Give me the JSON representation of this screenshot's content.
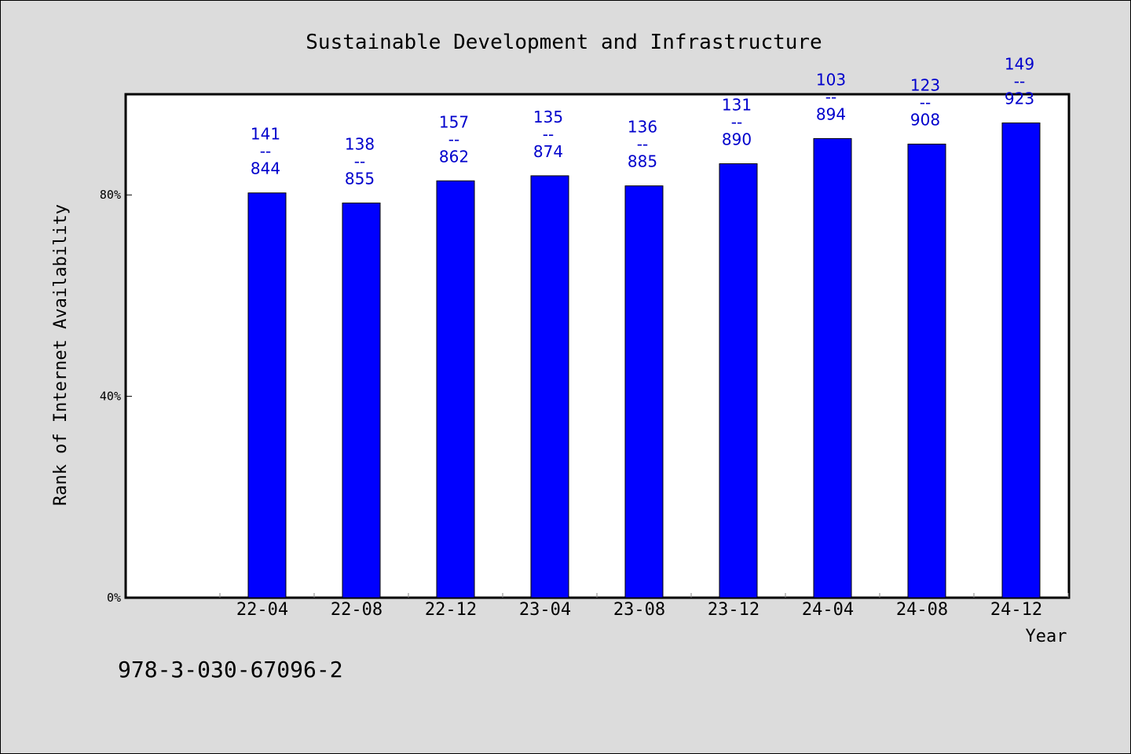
{
  "chart_data": {
    "type": "bar",
    "title": "Sustainable Development and Infrastructure",
    "xlabel": "Year",
    "ylabel": "Rank of Internet Availability",
    "categories": [
      "22-04",
      "22-08",
      "22-12",
      "23-04",
      "23-08",
      "23-12",
      "24-04",
      "24-08",
      "24-12"
    ],
    "values": [
      80.4,
      78.4,
      82.8,
      83.8,
      81.8,
      86.2,
      91.2,
      90.1,
      94.3
    ],
    "data_labels": [
      {
        "top": "141",
        "sep": "--",
        "bottom": "844"
      },
      {
        "top": "138",
        "sep": "--",
        "bottom": "855"
      },
      {
        "top": "157",
        "sep": "--",
        "bottom": "862"
      },
      {
        "top": "135",
        "sep": "--",
        "bottom": "874"
      },
      {
        "top": "136",
        "sep": "--",
        "bottom": "885"
      },
      {
        "top": "131",
        "sep": "--",
        "bottom": "890"
      },
      {
        "top": "103",
        "sep": "--",
        "bottom": "894"
      },
      {
        "top": "123",
        "sep": "--",
        "bottom": "908"
      },
      {
        "top": "149",
        "sep": "--",
        "bottom": "923"
      }
    ],
    "yticks": [
      {
        "value": 0,
        "label": "0%"
      },
      {
        "value": 40,
        "label": "40%"
      },
      {
        "value": 80,
        "label": "80%"
      }
    ],
    "ylim": [
      0,
      100
    ],
    "bar_color": "#0000ff",
    "label_color": "#0000cc",
    "grid": false,
    "legend": "none"
  },
  "footnote": "978-3-030-67096-2",
  "colors": {
    "background": "#dcdcdc",
    "plot_background": "#ffffff"
  }
}
